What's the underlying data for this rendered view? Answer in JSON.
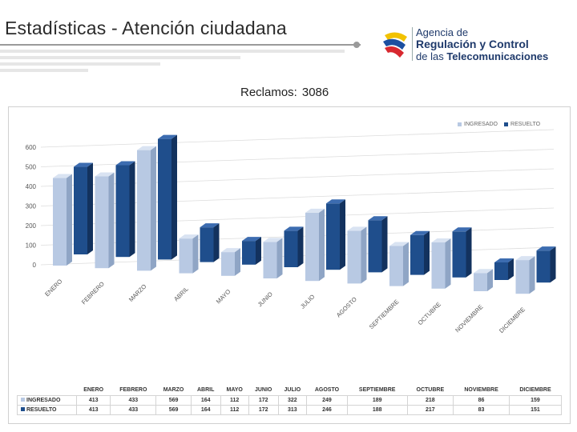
{
  "header": {
    "title": "Estadísticas - Atención ciudadana",
    "logo": {
      "line1": "Agencia de",
      "line2": "Regulación y Control",
      "line3_prefix": "de las ",
      "line3_bold": "Telecomunicaciones"
    }
  },
  "summary": {
    "label": "Reclamos:",
    "value": "3086"
  },
  "colors": {
    "ingresado": "#b8c9e3",
    "resuelto": "#1f4e8c",
    "gridline": "#dcdcdc"
  },
  "chart_data": {
    "type": "bar",
    "style": "3d-clustered-column",
    "categories": [
      "ENERO",
      "FEBRERO",
      "MARZO",
      "ABRIL",
      "MAYO",
      "JUNIO",
      "JULIO",
      "AGOSTO",
      "SEPTIEMBRE",
      "OCTUBRE",
      "NOVIEMBRE",
      "DICIEMBRE"
    ],
    "series": [
      {
        "name": "INGRESADO",
        "values": [
          413,
          433,
          569,
          164,
          112,
          172,
          322,
          249,
          189,
          218,
          86,
          159
        ]
      },
      {
        "name": "RESUELTO",
        "values": [
          413,
          433,
          569,
          164,
          112,
          172,
          313,
          246,
          188,
          217,
          83,
          151
        ]
      }
    ],
    "y_ticks": [
      "0",
      "100",
      "200",
      "300",
      "400",
      "500",
      "600"
    ],
    "ylim": [
      0,
      600
    ],
    "grid": true,
    "legend_position": "top-right",
    "data_table": true
  }
}
